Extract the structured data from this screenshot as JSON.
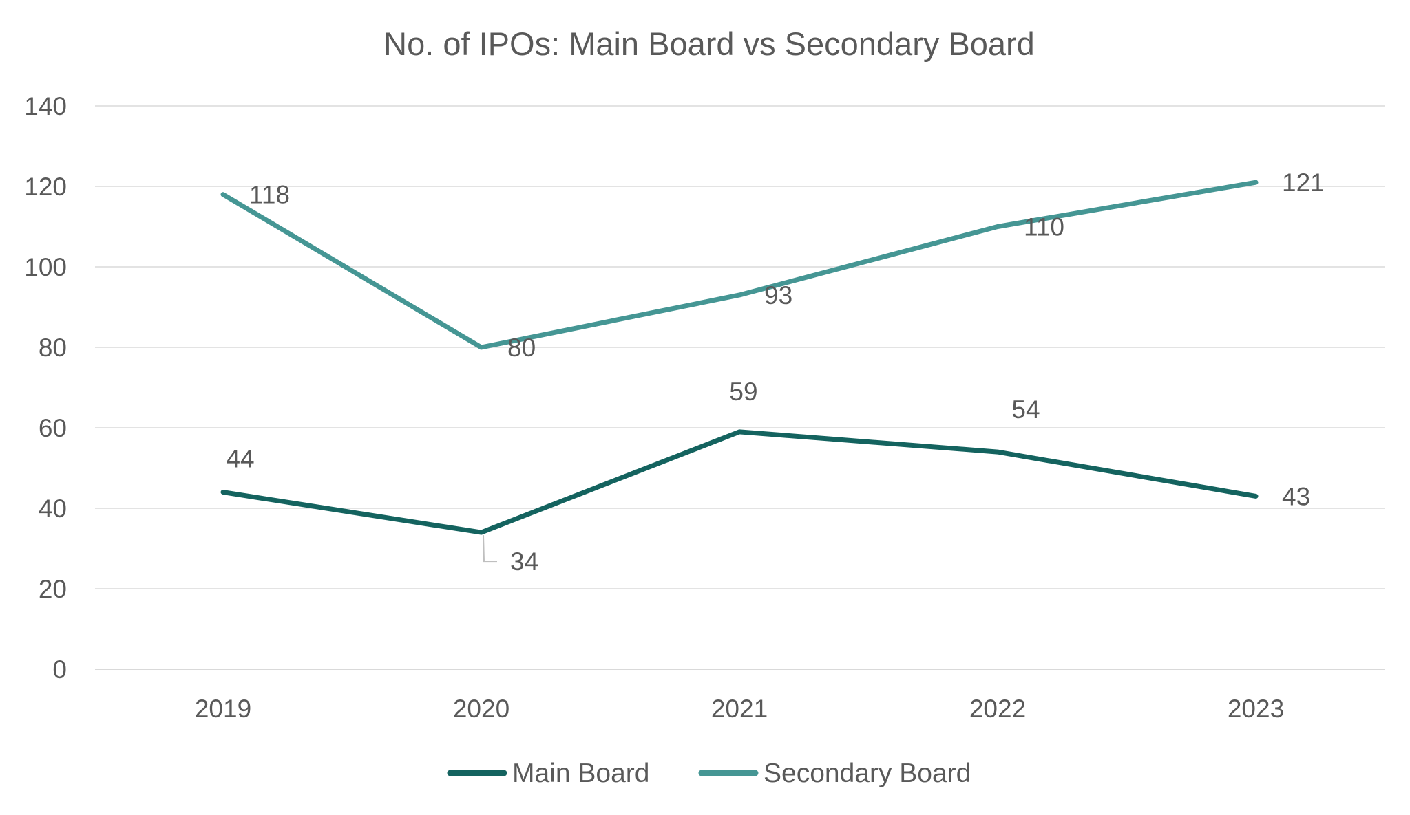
{
  "chart_data": {
    "type": "line",
    "title": "No. of IPOs: Main Board vs Secondary Board",
    "xlabel": "",
    "ylabel": "",
    "categories": [
      "2019",
      "2020",
      "2021",
      "2022",
      "2023"
    ],
    "ylim": [
      0,
      140
    ],
    "yticks": [
      0,
      20,
      40,
      60,
      80,
      100,
      120,
      140
    ],
    "grid": true,
    "legend_position": "bottom",
    "series": [
      {
        "name": "Main Board",
        "values": [
          44,
          34,
          59,
          54,
          43
        ],
        "color": "#14635F"
      },
      {
        "name": "Secondary Board",
        "values": [
          118,
          80,
          93,
          110,
          121
        ],
        "color": "#459694"
      }
    ]
  }
}
